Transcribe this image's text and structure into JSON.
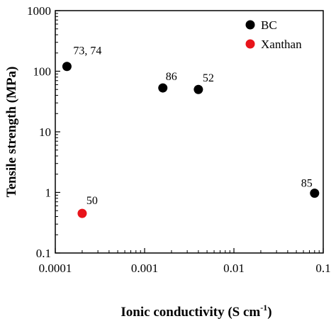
{
  "chart_data": {
    "type": "scatter",
    "xscale": "log",
    "yscale": "log",
    "xlim": [
      0.0001,
      0.1
    ],
    "ylim": [
      0.1,
      1000
    ],
    "xticks": [
      "0.0001",
      "0.001",
      "0.01",
      "0.1"
    ],
    "yticks": [
      "0.1",
      "1",
      "10",
      "100",
      "1000"
    ],
    "xlabel": "Ionic conductivity (S cm",
    "xlabel_sup": "-1",
    "xlabel_end": ")",
    "ylabel": "Tensile strength (MPa)",
    "legend_position": "top-right",
    "series": [
      {
        "name": "BC",
        "color": "#000000",
        "points": [
          {
            "x": 0.000135,
            "y": 120,
            "label": "73, 74"
          },
          {
            "x": 0.0016,
            "y": 53,
            "label": "86"
          },
          {
            "x": 0.004,
            "y": 50,
            "label": "52"
          },
          {
            "x": 0.08,
            "y": 0.97,
            "label": "85"
          }
        ]
      },
      {
        "name": "Xanthan",
        "color": "#e8141b",
        "points": [
          {
            "x": 0.0002,
            "y": 0.45,
            "label": "50"
          }
        ]
      }
    ]
  }
}
